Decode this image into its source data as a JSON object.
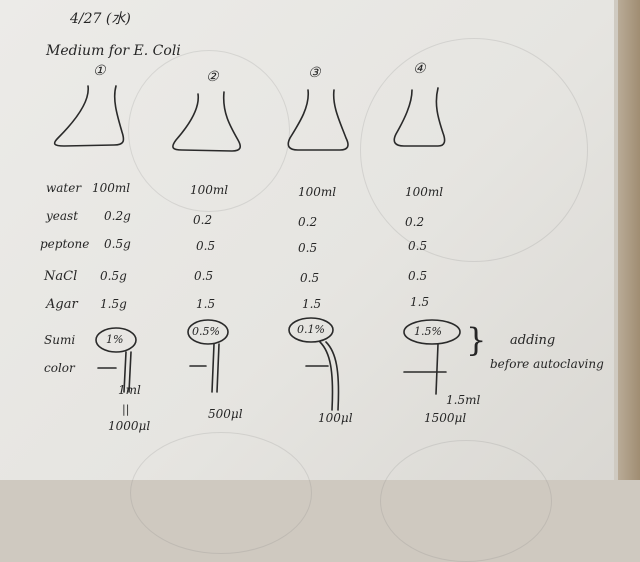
{
  "header": {
    "date": "4/27 (水)",
    "title": "Medium for E. Coli"
  },
  "flasks": [
    {
      "label": "①"
    },
    {
      "label": "②"
    },
    {
      "label": "③"
    },
    {
      "label": "④"
    }
  ],
  "rows": [
    {
      "name": "water",
      "values": [
        "100ml",
        "100ml",
        "100ml",
        "100ml"
      ]
    },
    {
      "name": "yeast",
      "values": [
        "0.2g",
        "0.2",
        "0.2",
        "0.2"
      ]
    },
    {
      "name": "peptone",
      "values": [
        "0.5g",
        "0.5",
        "0.5",
        "0.5"
      ]
    },
    {
      "name": "NaCl",
      "values": [
        "0.5g",
        "0.5",
        "0.5",
        "0.5"
      ]
    },
    {
      "name": "Agar",
      "values": [
        "1.5g",
        "1.5",
        "1.5",
        "1.5"
      ]
    },
    {
      "name": "Sumi",
      "values": [
        "1%",
        "0.5%",
        "0.1%",
        "1.5%"
      ]
    },
    {
      "name": "color",
      "values": [
        "",
        "",
        "",
        ""
      ]
    }
  ],
  "volumes": [
    "1ml",
    "1000μl",
    "500μl",
    "100μl",
    "1.5ml",
    "1500μl"
  ],
  "equals_mark": "||",
  "note": {
    "bracket": "}",
    "line1": "adding",
    "line2": "before autoclaving"
  },
  "colors": {
    "ink": "#262626",
    "paper": "#e9e8e5",
    "strip": "#a8957a"
  }
}
